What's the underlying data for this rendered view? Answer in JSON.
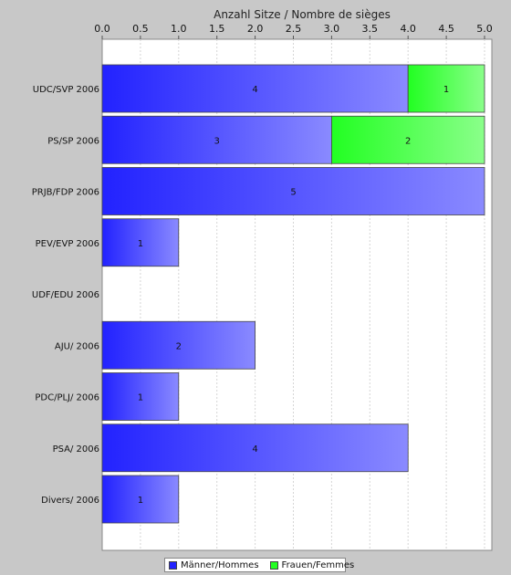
{
  "chart_data": {
    "type": "bar",
    "orientation": "horizontal",
    "stacked": true,
    "title": "",
    "xlabel": "Anzahl Sitze / Nombre de sièges",
    "ylabel": "",
    "xlim": [
      0,
      5.0
    ],
    "xticks": [
      "0.0",
      "0.5",
      "1.0",
      "1.5",
      "2.0",
      "2.5",
      "3.0",
      "3.5",
      "4.0",
      "4.5",
      "5.0"
    ],
    "x_axis_position": "top",
    "grid": true,
    "legend_position": "bottom",
    "categories": [
      "UDC/SVP 2006",
      "PS/SP 2006",
      "PRJB/FDP 2006",
      "PEV/EVP 2006",
      "UDF/EDU 2006",
      "AJU/ 2006",
      "PDC/PLJ/ 2006",
      "PSA/ 2006",
      "Divers/ 2006"
    ],
    "series": [
      {
        "name": "Männer/Hommes",
        "color": "#2222ff",
        "values": [
          4,
          3,
          5,
          1,
          0,
          2,
          1,
          4,
          1
        ]
      },
      {
        "name": "Frauen/Femmes",
        "color": "#22ff22",
        "values": [
          1,
          2,
          0,
          0,
          0,
          0,
          0,
          0,
          0
        ]
      }
    ]
  }
}
